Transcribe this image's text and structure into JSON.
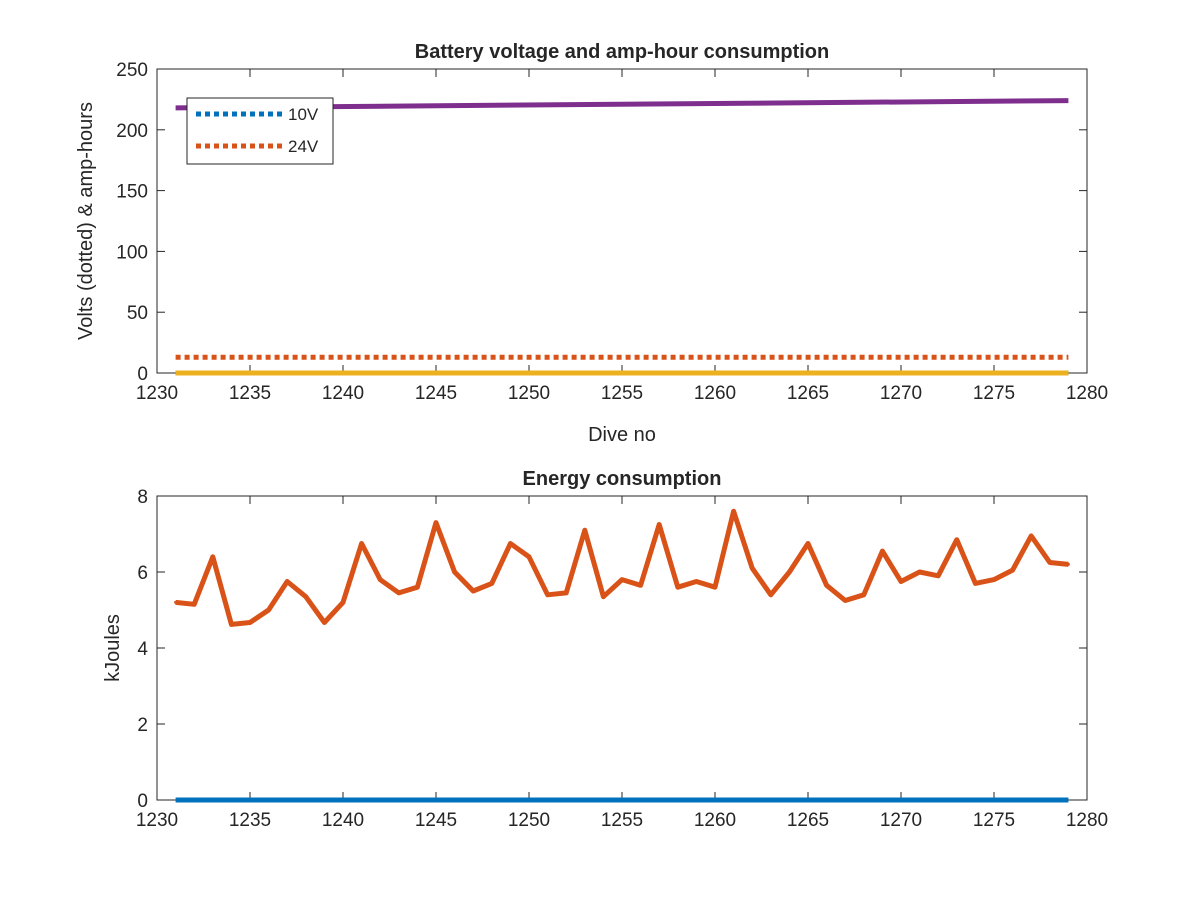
{
  "chart_data": [
    {
      "type": "line",
      "title": "Battery voltage and amp-hour consumption",
      "xlabel": "Dive no",
      "ylabel": "Volts (dotted) & amp-hours",
      "xlim": [
        1230,
        1280
      ],
      "ylim": [
        0,
        250
      ],
      "xticks": [
        1230,
        1235,
        1240,
        1245,
        1250,
        1255,
        1260,
        1265,
        1270,
        1275,
        1280
      ],
      "yticks": [
        0,
        50,
        100,
        150,
        200,
        250
      ],
      "grid": false,
      "legend_position": "top-left",
      "series": [
        {
          "name": "10V",
          "style": "dotted",
          "color": "#0072BD",
          "x": [
            1231,
            1279
          ],
          "values": [
            0,
            0
          ]
        },
        {
          "name": "24V",
          "style": "dotted",
          "color": "#D95319",
          "x": [
            1231,
            1279
          ],
          "values": [
            13,
            13
          ]
        },
        {
          "style": "solid",
          "color": "#7E2F8E",
          "x": [
            1231,
            1279
          ],
          "values": [
            218,
            224
          ]
        },
        {
          "style": "solid",
          "color": "#EDB120",
          "x": [
            1231,
            1279
          ],
          "values": [
            0,
            0
          ]
        }
      ]
    },
    {
      "type": "line",
      "title": "Energy consumption",
      "xlabel": "",
      "ylabel": "kJoules",
      "xlim": [
        1230,
        1280
      ],
      "ylim": [
        0,
        8
      ],
      "xticks": [
        1230,
        1235,
        1240,
        1245,
        1250,
        1255,
        1260,
        1265,
        1270,
        1275,
        1280
      ],
      "yticks": [
        0,
        2,
        4,
        6,
        8
      ],
      "grid": false,
      "series": [
        {
          "style": "solid",
          "color": "#D95319",
          "x": [
            1231,
            1232,
            1233,
            1234,
            1235,
            1236,
            1237,
            1238,
            1239,
            1240,
            1241,
            1242,
            1243,
            1244,
            1245,
            1246,
            1247,
            1248,
            1249,
            1250,
            1251,
            1252,
            1253,
            1254,
            1255,
            1256,
            1257,
            1258,
            1259,
            1260,
            1261,
            1262,
            1263,
            1264,
            1265,
            1266,
            1267,
            1268,
            1269,
            1270,
            1271,
            1272,
            1273,
            1274,
            1275,
            1276,
            1277,
            1278,
            1279
          ],
          "values": [
            5.2,
            5.15,
            6.4,
            4.62,
            4.67,
            5.0,
            5.75,
            5.35,
            4.67,
            5.2,
            6.75,
            5.8,
            5.45,
            5.6,
            7.3,
            6.0,
            5.5,
            5.7,
            6.75,
            6.4,
            5.4,
            5.45,
            7.1,
            5.35,
            5.8,
            5.65,
            7.25,
            5.6,
            5.75,
            5.6,
            7.6,
            6.1,
            5.4,
            6.0,
            6.75,
            5.65,
            5.25,
            5.4,
            6.55,
            5.75,
            6.0,
            5.9,
            6.85,
            5.7,
            5.8,
            6.05,
            6.95,
            6.25,
            6.2
          ]
        },
        {
          "style": "solid",
          "color": "#0072BD",
          "x": [
            1231,
            1279
          ],
          "values": [
            0,
            0
          ]
        }
      ]
    }
  ]
}
